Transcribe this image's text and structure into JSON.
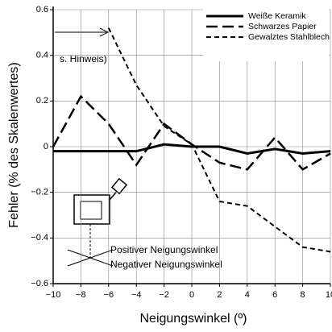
{
  "chart_data": {
    "type": "line",
    "x": [
      -10,
      -8,
      -6,
      -4,
      -2,
      0,
      2,
      4,
      6,
      8,
      10
    ],
    "series": [
      {
        "name": "Weiße Keramik",
        "color": "#000000",
        "values": [
          -0.02,
          -0.02,
          -0.02,
          -0.02,
          0.01,
          0,
          0,
          -0.03,
          -0.01,
          -0.03,
          -0.02
        ]
      },
      {
        "name": "Schwarzes Papier",
        "color": "#000000",
        "values": [
          0,
          0.22,
          0.1,
          -0.08,
          0.1,
          0.01,
          -0.07,
          -0.1,
          0.04,
          -0.1,
          -0.03
        ]
      },
      {
        "name": "Gewalztes Stahlblech",
        "color": "#000000",
        "values": [
          null,
          null,
          0.52,
          0.27,
          0.09,
          0.01,
          -0.24,
          -0.26,
          -0.35,
          -0.44,
          -0.46
        ]
      }
    ],
    "xlim": [
      -10,
      10
    ],
    "ylim": [
      -0.6,
      0.6
    ],
    "xticks": [
      {
        "value": -10,
        "label": "−10"
      },
      {
        "value": -8,
        "label": "−8"
      },
      {
        "value": -6,
        "label": "−6"
      },
      {
        "value": -4,
        "label": "−4"
      },
      {
        "value": -2,
        "label": "−2"
      },
      0,
      2,
      4,
      6,
      8,
      10
    ],
    "yticks": [
      {
        "value": -0.6,
        "label": "−0.6"
      },
      {
        "value": -0.4,
        "label": "−0.4"
      },
      {
        "value": -0.2,
        "label": "−0.2"
      },
      0,
      0.2,
      0.4,
      0.6
    ],
    "xlabel": "Neigungswinkel (º)",
    "ylabel": "Fehler (% des Skalenwertes)",
    "grid": true,
    "legend": "upper right",
    "annotations": [
      "s. Hinweis)",
      "Positiver Neigungswinkel",
      "Negativer Neigungswinkel"
    ]
  }
}
